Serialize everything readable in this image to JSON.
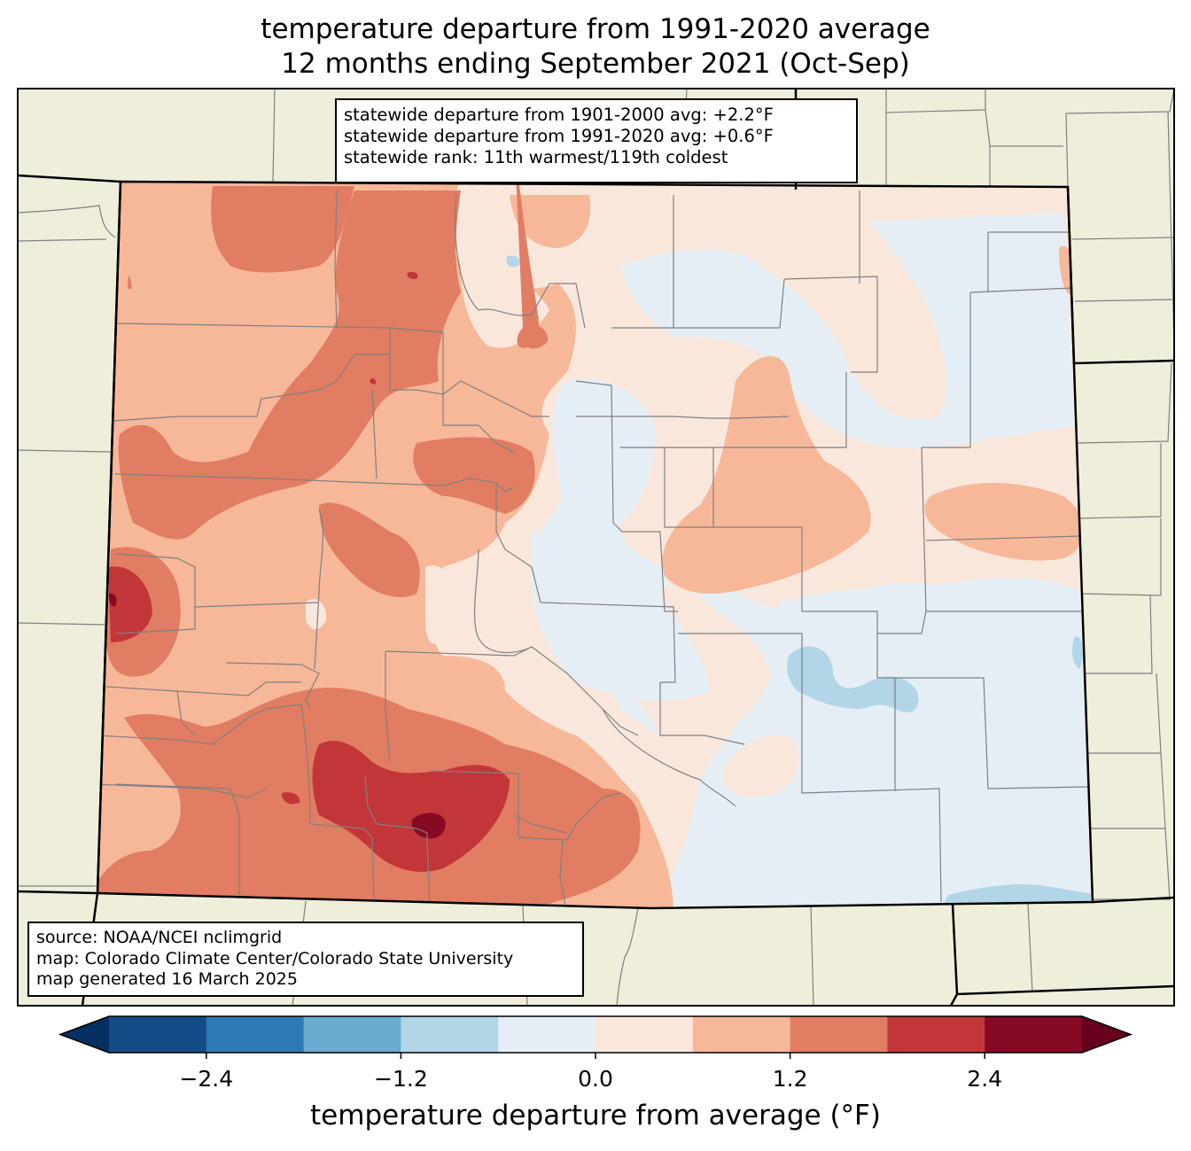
{
  "title": {
    "line1": "temperature departure from 1991-2020 average",
    "line2": "12 months ending September 2021 (Oct-Sep)"
  },
  "stats": {
    "line1": "statewide departure from 1901-2000 avg: +2.2°F",
    "line2": "statewide departure from 1991-2020 avg: +0.6°F",
    "line3": "statewide rank: 11th warmest/119th coldest"
  },
  "source": {
    "line1": "source: NOAA/NCEI nclimgrid",
    "line2": "map: Colorado Climate Center/Colorado State University",
    "line3": "map generated 16 March 2025"
  },
  "colorbar": {
    "label": "temperature departure from average (°F)",
    "ticks": [
      "−2.4",
      "−1.2",
      "0.0",
      "1.2",
      "2.4"
    ],
    "tick_values": [
      -2.4,
      -1.2,
      0.0,
      1.2,
      2.4
    ],
    "range": [
      -3.0,
      3.0
    ],
    "extend": "both",
    "colors": [
      "#053061",
      "#144c87",
      "#2f79b5",
      "#6aacd0",
      "#b2d5e7",
      "#e5eef4",
      "#fae7dc",
      "#f7b799",
      "#e17d62",
      "#c23639",
      "#870a24",
      "#67001f"
    ]
  },
  "map_colors": {
    "land": "#efeedb",
    "state_border": "#000000",
    "county_border": "#808080"
  }
}
